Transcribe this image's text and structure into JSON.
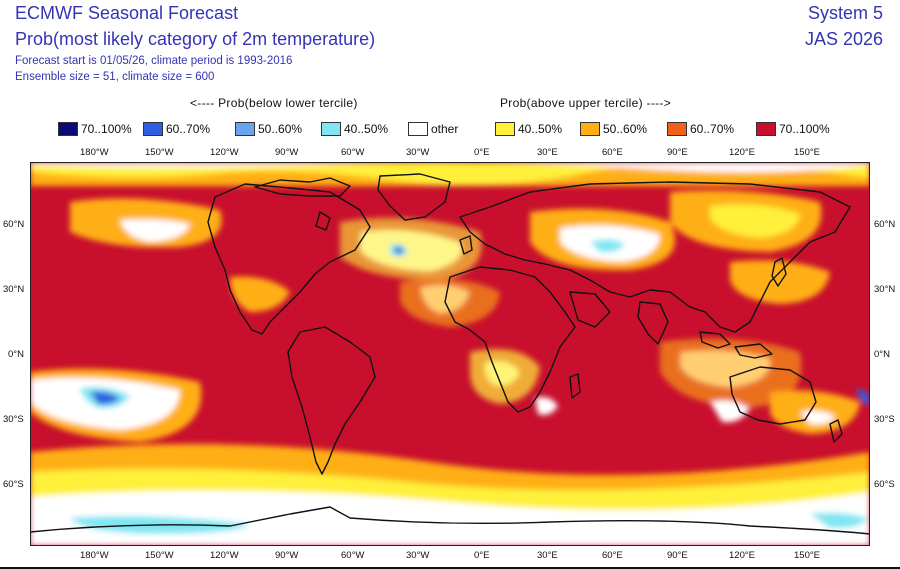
{
  "header": {
    "title": "ECMWF Seasonal Forecast",
    "subtitle": "Prob(most likely category of 2m temperature)",
    "forecast_line": "Forecast start is 01/05/26, climate period is 1993-2016",
    "ensemble_line": "Ensemble size = 51, climate size = 600",
    "system": "System 5",
    "period": "JAS 2026"
  },
  "legend": {
    "below_label": "<---- Prob(below lower tercile)",
    "above_label": "Prob(above upper tercile) ---->",
    "items": [
      {
        "label": "70..100%",
        "color": "#0a0a7a"
      },
      {
        "label": "60..70%",
        "color": "#2f5fe0"
      },
      {
        "label": "50..60%",
        "color": "#6aa4ee"
      },
      {
        "label": "40..50%",
        "color": "#7fe6f2"
      },
      {
        "label": "other",
        "color": "#ffffff"
      },
      {
        "label": "40..50%",
        "color": "#fff03a"
      },
      {
        "label": "50..60%",
        "color": "#ffaf14"
      },
      {
        "label": "60..70%",
        "color": "#f2601a"
      },
      {
        "label": "70..100%",
        "color": "#c8102e"
      }
    ]
  },
  "axes": {
    "lon_labels": [
      "180°W",
      "150°W",
      "120°W",
      "90°W",
      "60°W",
      "30°W",
      "0°E",
      "30°E",
      "60°E",
      "90°E",
      "120°E",
      "150°E"
    ],
    "lat_left": [
      "60°N",
      "30°N",
      "0°N",
      "30°S",
      "60°S"
    ],
    "lat_right": [
      "60°N",
      "30°N",
      "0°N",
      "30°S",
      "60°S"
    ]
  },
  "colors": {
    "base": "#c8102e",
    "orange_red": "#f2601a",
    "orange": "#ffaf14",
    "yellow": "#fff03a",
    "white": "#ffffff",
    "cyan": "#7fe6f2",
    "light_blue": "#6aa4ee",
    "blue": "#2f5fe0",
    "dark_blue": "#0a0a7a"
  }
}
